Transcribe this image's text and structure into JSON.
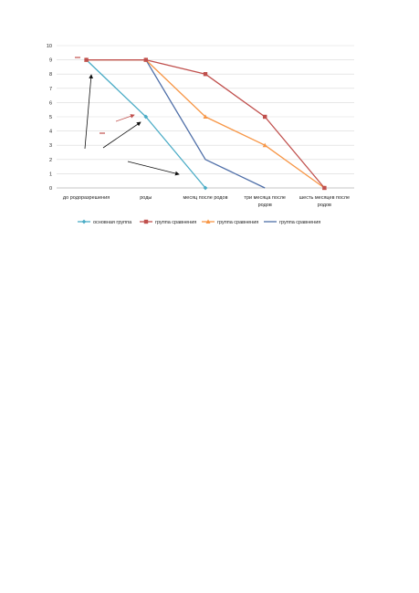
{
  "chart_data": {
    "type": "line",
    "categories": [
      "до родоразрешения",
      "роды",
      "месяц после родов",
      "три месяца после родов",
      "шесть месяцев после родов"
    ],
    "category_lines": [
      [
        "до родоразрешения"
      ],
      [
        "роды"
      ],
      [
        "месяц после родов"
      ],
      [
        "три месяца после",
        "родов"
      ],
      [
        "шесть месяцев после",
        "родов"
      ]
    ],
    "yticks": [
      0,
      1,
      2,
      3,
      4,
      5,
      6,
      7,
      8,
      9,
      10
    ],
    "ylim": [
      0,
      10
    ],
    "grid": true,
    "legend_position": "bottom",
    "series": [
      {
        "name": "основная группа",
        "color": "#4bacc6",
        "marker": "diamond",
        "values": [
          9,
          5,
          0,
          null,
          null
        ]
      },
      {
        "name": "группа сравнения",
        "color": "#c0504d",
        "marker": "square",
        "values": [
          9,
          9,
          8,
          5,
          0
        ]
      },
      {
        "name": "группа сравнения",
        "color": "#f79646",
        "marker": "triangle",
        "values": [
          9,
          9,
          5,
          3,
          0
        ]
      },
      {
        "name": "группа сравнения",
        "color": "#4f6fa8",
        "marker": "none",
        "values": [
          9,
          9,
          2,
          0,
          null
        ]
      }
    ]
  }
}
